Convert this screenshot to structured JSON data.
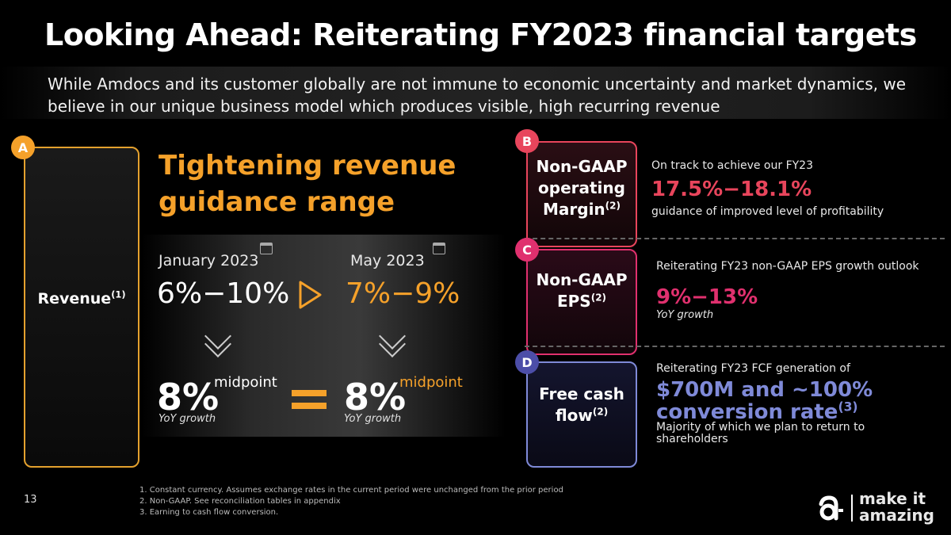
{
  "title": "Looking Ahead: Reiterating FY2023 financial targets",
  "subtitle": "While Amdocs and its customer globally are not immune to economic uncertainty and market dynamics, we believe in our unique business model which produces visible, high recurring revenue",
  "colors": {
    "orange": "#f5a12a",
    "red": "#e8455c",
    "pink": "#e0306e",
    "blue": "#7f8ad8",
    "purple": "#4c4ea8"
  },
  "section_a": {
    "badge": "A",
    "panel_label": "Revenue",
    "panel_sup": "(1)",
    "heading_line1": "Tightening revenue",
    "heading_line2": "guidance range",
    "left_period": "January 2023",
    "right_period": "May 2023",
    "left_range": "6%−10%",
    "right_range": "7%−9%",
    "left_mid": "8%",
    "right_mid": "8%",
    "mid_label": "midpoint",
    "yoy": "YoY growth",
    "icons": {
      "calendar": "calendar-icon",
      "play": "play-arrow-icon",
      "chevron": "chevron-down-icon",
      "equals": "equals-icon"
    }
  },
  "section_b": {
    "badge": "B",
    "tile_line1": "Non-GAAP",
    "tile_line2": "operating",
    "tile_line3": "Margin",
    "tile_sup": "(2)",
    "desc_top": "On track to achieve our FY23",
    "highlight": "17.5%−18.1%",
    "desc_bottom": "guidance of improved level of profitability"
  },
  "section_c": {
    "badge": "C",
    "tile_line1": "Non-GAAP",
    "tile_line2": "EPS",
    "tile_sup": "(2)",
    "desc_top": "Reiterating FY23 non-GAAP EPS growth outlook",
    "highlight": "9%−13%",
    "desc_bottom": "YoY growth"
  },
  "section_d": {
    "badge": "D",
    "tile_line1": "Free cash",
    "tile_line2": "flow",
    "tile_sup": "(2)",
    "desc_top": "Reiterating FY23 FCF generation of",
    "highlight_line1": "$700M and ~100%",
    "highlight_line2": "conversion rate",
    "highlight_sup": "(3)",
    "desc_bottom_line1": "Majority of which we plan to return to",
    "desc_bottom_line2": "shareholders"
  },
  "footnotes": [
    "1.   Constant currency. Assumes exchange rates in the current period were unchanged from the prior period",
    "2.   Non-GAAP. See reconciliation tables in appendix",
    "3.   Earning to cash flow conversion."
  ],
  "page_number": "13",
  "logo": {
    "line1": "make it",
    "line2": "amazing"
  }
}
